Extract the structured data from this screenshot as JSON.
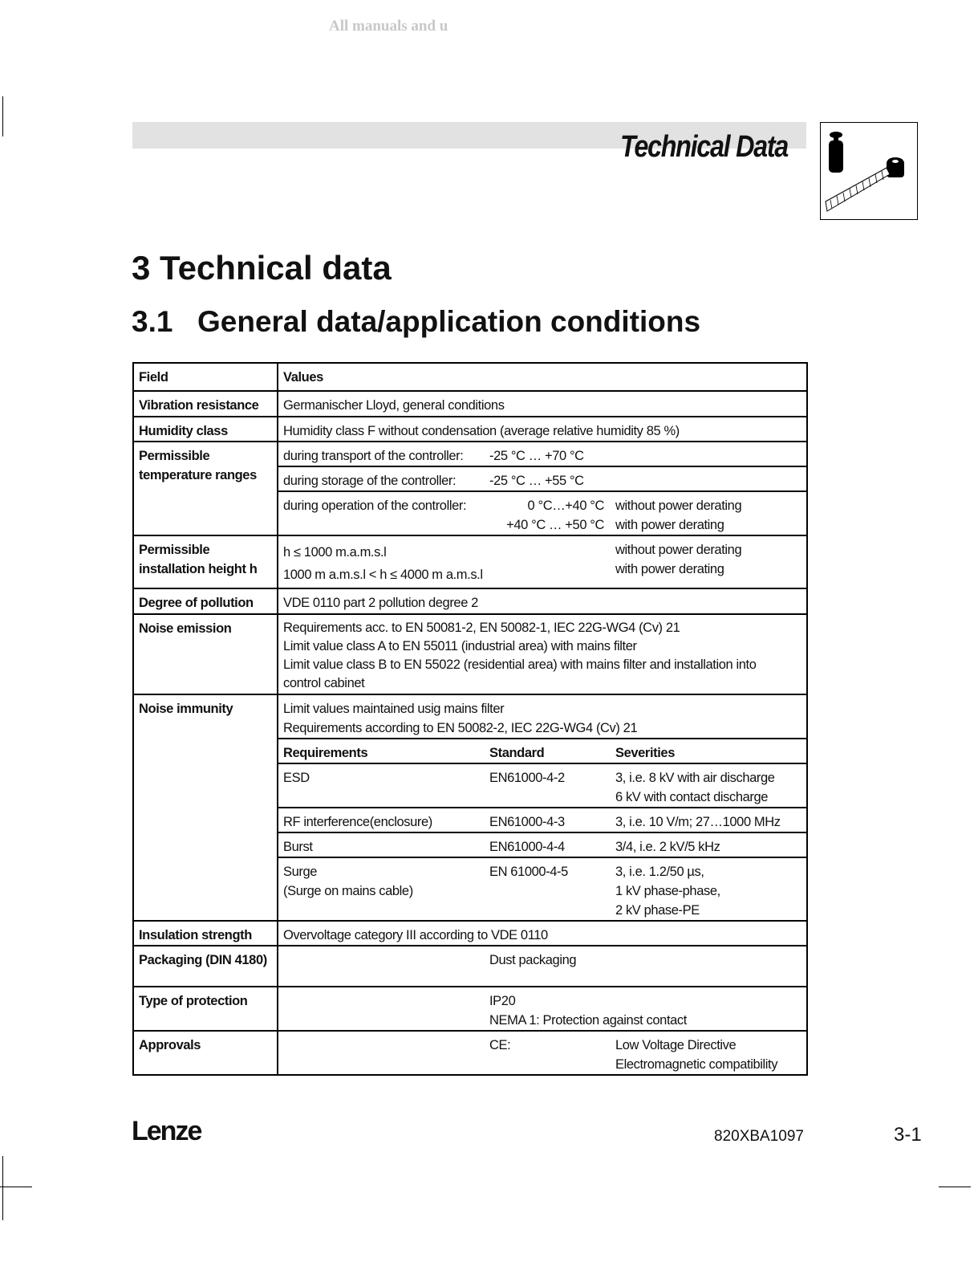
{
  "watermark": "All manuals and u",
  "header": {
    "title": "Technical Data",
    "icon": "weight-and-tape-measure-icon"
  },
  "chapter": {
    "title": "3 Technical data"
  },
  "section": {
    "number": "3.1",
    "title": "General data/application conditions"
  },
  "table": {
    "head": {
      "field": "Field",
      "values": "Values"
    },
    "vibration": {
      "field": "Vibration resistance",
      "value": "Germanischer Lloyd, general conditions"
    },
    "humidity": {
      "field": "Humidity class",
      "value": "Humidity class F without condensation (average relative humidity 85  %)"
    },
    "temperature": {
      "field": "Permissible temperature ranges",
      "transport": {
        "label": "during transport of the controller:",
        "value": "-25 °C … +70 °C"
      },
      "storage": {
        "label": "during storage of the controller:",
        "value": "-25 °C … +55 °C"
      },
      "operation": {
        "label": "during operation of the controller:",
        "value1": "0 °C…+40 °C",
        "value2": "+40 °C … +50 °C",
        "note1": "without power derating",
        "note2": "with power derating"
      }
    },
    "height": {
      "field": "Permissible installation height h",
      "line1": "h ≤ 1000 m.a.m.s.l",
      "line2": "1000 m a.m.s.l < h ≤ 4000 m a.m.s.l",
      "note1": "without power derating",
      "note2": "with power derating"
    },
    "pollution": {
      "field": "Degree of pollution",
      "value": "VDE 0110 part 2 pollution degree 2"
    },
    "emission": {
      "field": "Noise emission",
      "lines": [
        "Requirements acc. to EN 50081-2, EN 50082-1, IEC 22G-WG4 (Cv) 21",
        "Limit value class A to EN 55011 (industrial area) with mains filter",
        "Limit value class B to EN 55022 (residential area) with mains filter and installation into control cabinet"
      ]
    },
    "immunity": {
      "field": "Noise immunity",
      "intro": [
        "Limit values maintained usig mains filter",
        "Requirements according to EN 50082-2, IEC 22G-WG4 (Cv) 21"
      ],
      "columns": [
        "Requirements",
        "Standard",
        "Severities"
      ],
      "rows": [
        {
          "req": "ESD",
          "std": "EN61000-4-2",
          "sev": [
            "3, i.e. 8 kV with air discharge",
            "6 kV with contact discharge"
          ]
        },
        {
          "req": "RF interference(enclosure)",
          "std": "EN61000-4-3",
          "sev": [
            "3, i.e. 10 V/m; 27…1000 MHz"
          ]
        },
        {
          "req": "Burst",
          "std": "EN61000-4-4",
          "sev": [
            "3/4, i.e. 2 kV/5 kHz"
          ]
        },
        {
          "req": "Surge",
          "req2": "(Surge on mains cable)",
          "std": "EN 61000-4-5",
          "sev": [
            "3, i.e. 1.2/50 µs,",
            "1 kV phase-phase,",
            "2 kV phase-PE"
          ]
        }
      ]
    },
    "insulation": {
      "field": "Insulation strength",
      "value": "Overvoltage category III according to VDE 0110"
    },
    "packaging": {
      "field": "Packaging (DIN 4180)",
      "value": "Dust packaging"
    },
    "protection": {
      "field": "Type of protection",
      "line1": "IP20",
      "line2": "NEMA 1: Protection against contact"
    },
    "approvals": {
      "field": "Approvals",
      "label": "CE:",
      "line1": "Low Voltage Directive",
      "line2": "Electromagnetic compatibility"
    }
  },
  "footer": {
    "logo": "Lenze",
    "doc_code": "820XBA1097",
    "page": "3-1"
  }
}
